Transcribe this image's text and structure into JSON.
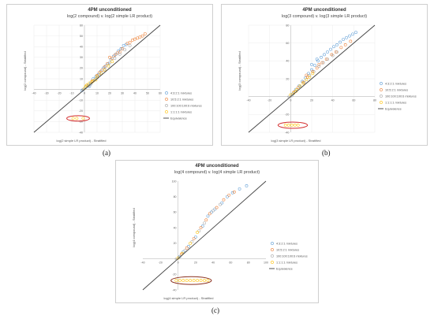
{
  "figure": {
    "panel_labels": [
      "(a)",
      "(b)",
      "(c)"
    ]
  },
  "chart_data": [
    {
      "type": "scatter",
      "title": "4PM unconditioned",
      "subtitle": "log(2 compound) v. log(2 simple LR product)",
      "xlabel": "log(2 simple LR product) - Stratified",
      "ylabel": "log(2 compound) - Stratified",
      "xlim": [
        -40,
        60
      ],
      "ylim": [
        -40,
        60
      ],
      "xticks": [
        "-40",
        "-30",
        "-20",
        "-10",
        "0",
        "10",
        "20",
        "30",
        "40",
        "50",
        "60"
      ],
      "yticks": [
        "-40",
        "-30",
        "-20",
        "-10",
        "0",
        "10",
        "20",
        "30",
        "40",
        "50",
        "60"
      ],
      "grid": true,
      "legend": "right",
      "series": [
        {
          "name": "4:3:2:1 mixtures",
          "color": "#5b9bd5",
          "points": [
            [
              1,
              2
            ],
            [
              3,
              4
            ],
            [
              5,
              6
            ],
            [
              7,
              10
            ],
            [
              9,
              12
            ],
            [
              11,
              14
            ],
            [
              13,
              17
            ],
            [
              15,
              20
            ],
            [
              17,
              22
            ],
            [
              19,
              24
            ],
            [
              21,
              28
            ],
            [
              23,
              31
            ],
            [
              25,
              33
            ],
            [
              27,
              36
            ],
            [
              29,
              38
            ],
            [
              31,
              41
            ],
            [
              33,
              42
            ],
            [
              -2,
              -1
            ],
            [
              4,
              3
            ]
          ]
        },
        {
          "name": "10:5:2:1 mixtures",
          "color": "#ed7d31",
          "points": [
            [
              2,
              4
            ],
            [
              6,
              8
            ],
            [
              10,
              13
            ],
            [
              14,
              18
            ],
            [
              18,
              24
            ],
            [
              22,
              29
            ],
            [
              26,
              34
            ],
            [
              30,
              38
            ],
            [
              34,
              43
            ],
            [
              38,
              46
            ],
            [
              42,
              48
            ],
            [
              46,
              50
            ],
            [
              48,
              52
            ],
            [
              20,
              30
            ],
            [
              24,
              32
            ],
            [
              28,
              35
            ],
            [
              36,
              44
            ],
            [
              40,
              47
            ],
            [
              44,
              49
            ],
            [
              12,
              16
            ],
            [
              16,
              21
            ]
          ]
        },
        {
          "name": "100:100:100:6 mixtures",
          "color": "#a5a5a5",
          "points": [
            [
              3,
              3
            ],
            [
              8,
              9
            ],
            [
              12,
              14
            ],
            [
              16,
              19
            ],
            [
              20,
              25
            ],
            [
              24,
              29
            ],
            [
              28,
              33
            ],
            [
              32,
              37
            ],
            [
              36,
              41
            ],
            [
              -1,
              0
            ],
            [
              5,
              5
            ],
            [
              10,
              11
            ]
          ]
        },
        {
          "name": "1:1:1:1 mixtures",
          "color": "#ffc000",
          "points": [
            [
              1,
              3
            ],
            [
              4,
              6
            ],
            [
              7,
              8
            ],
            [
              10,
              12
            ],
            [
              13,
              15
            ],
            [
              16,
              18
            ],
            [
              19,
              22
            ],
            [
              22,
              26
            ],
            [
              2,
              4
            ],
            [
              6,
              7
            ],
            [
              9,
              9
            ],
            [
              0,
              1
            ],
            [
              -9,
              -27
            ],
            [
              -6,
              -27
            ],
            [
              -1,
              -27
            ]
          ]
        },
        {
          "name": "Equivalence",
          "color": "#404040",
          "type": "line",
          "x": [
            -40,
            60
          ],
          "y": [
            -40,
            60
          ]
        }
      ],
      "highlight_ellipse": {
        "cx": -5,
        "cy": -27,
        "rx": 9,
        "ry": 2.5,
        "color": "#d32a2a"
      }
    },
    {
      "type": "scatter",
      "title": "4PM unconditioned",
      "subtitle": "log(3 compound) v. log(3 simple LR product)",
      "xlabel": "log(3 simple LR product) - Stratified",
      "ylabel": "log(3 compound) - Stratified",
      "xlim": [
        -40,
        80
      ],
      "ylim": [
        -40,
        80
      ],
      "xticks": [
        "-40",
        "-20",
        "0",
        "20",
        "40",
        "60",
        "80"
      ],
      "yticks": [
        "-40",
        "-20",
        "0",
        "20",
        "40",
        "60",
        "80"
      ],
      "grid": true,
      "legend": "right",
      "series": [
        {
          "name": "4:3:2:1 mixtures",
          "color": "#5b9bd5",
          "points": [
            [
              2,
              3
            ],
            [
              5,
              8
            ],
            [
              8,
              12
            ],
            [
              11,
              17
            ],
            [
              14,
              21
            ],
            [
              17,
              26
            ],
            [
              20,
              30
            ],
            [
              23,
              35
            ],
            [
              26,
              40
            ],
            [
              29,
              44
            ],
            [
              32,
              47
            ],
            [
              35,
              50
            ],
            [
              38,
              53
            ],
            [
              41,
              56
            ],
            [
              44,
              58
            ],
            [
              47,
              61
            ],
            [
              50,
              64
            ],
            [
              53,
              66
            ],
            [
              56,
              68
            ],
            [
              59,
              70
            ],
            [
              62,
              72
            ],
            [
              20,
              36
            ],
            [
              25,
              42
            ]
          ]
        },
        {
          "name": "10:5:2:1 mixtures",
          "color": "#ed7d31",
          "points": [
            [
              3,
              5
            ],
            [
              7,
              10
            ],
            [
              12,
              16
            ],
            [
              16,
              22
            ],
            [
              21,
              28
            ],
            [
              25,
              32
            ],
            [
              30,
              38
            ],
            [
              34,
              42
            ],
            [
              39,
              47
            ],
            [
              43,
              50
            ],
            [
              48,
              55
            ],
            [
              52,
              58
            ],
            [
              57,
              62
            ],
            [
              15,
              24
            ],
            [
              27,
              36
            ]
          ]
        },
        {
          "name": "100:100:100:6 mixtures",
          "color": "#a5a5a5",
          "points": [
            [
              1,
              1
            ],
            [
              4,
              6
            ],
            [
              9,
              11
            ],
            [
              13,
              16
            ],
            [
              18,
              24
            ],
            [
              22,
              28
            ],
            [
              27,
              34
            ],
            [
              31,
              38
            ],
            [
              35,
              42
            ],
            [
              40,
              46
            ],
            [
              44,
              50
            ]
          ]
        },
        {
          "name": "1:1:1:1 mixtures",
          "color": "#ffc000",
          "points": [
            [
              0,
              2
            ],
            [
              3,
              4
            ],
            [
              6,
              8
            ],
            [
              9,
              12
            ],
            [
              12,
              15
            ],
            [
              15,
              19
            ],
            [
              18,
              22
            ],
            [
              21,
              26
            ],
            [
              5,
              6
            ],
            [
              -5,
              -32
            ],
            [
              -2,
              -32
            ],
            [
              1,
              -32
            ],
            [
              4,
              -32
            ],
            [
              7,
              -32
            ]
          ]
        },
        {
          "name": "Equivalence",
          "color": "#404040",
          "type": "line",
          "x": [
            -40,
            80
          ],
          "y": [
            -40,
            80
          ]
        }
      ],
      "highlight_ellipse": {
        "cx": 2,
        "cy": -32,
        "rx": 14,
        "ry": 3.5,
        "color": "#d32a2a"
      }
    },
    {
      "type": "scatter",
      "title": "4PM unconditioned",
      "subtitle": "log(4 compound) v. log(4 simple LR product)",
      "xlabel": "log(4 simple LR product) - Stratified",
      "ylabel": "log(4 compound) - Stratified",
      "xlim": [
        -40,
        100
      ],
      "ylim": [
        -40,
        100
      ],
      "xticks": [
        "-40",
        "-20",
        "0",
        "20",
        "40",
        "60",
        "80",
        "100"
      ],
      "yticks": [
        "-40",
        "-20",
        "0",
        "20",
        "40",
        "60",
        "80",
        "100"
      ],
      "grid": false,
      "legend": "right",
      "series": [
        {
          "name": "4:3:2:1 mixtures",
          "color": "#5b9bd5",
          "points": [
            [
              2,
              3
            ],
            [
              6,
              9
            ],
            [
              12,
              16
            ],
            [
              20,
              28
            ],
            [
              28,
              42
            ],
            [
              34,
              55
            ],
            [
              38,
              60
            ],
            [
              42,
              64
            ],
            [
              50,
              72
            ],
            [
              56,
              80
            ],
            [
              62,
              85
            ],
            [
              70,
              90
            ],
            [
              78,
              94
            ]
          ]
        },
        {
          "name": "10:5:2:1 mixtures",
          "color": "#ed7d31",
          "points": [
            [
              4,
              6
            ],
            [
              10,
              14
            ],
            [
              18,
              26
            ],
            [
              26,
              40
            ],
            [
              32,
              50
            ],
            [
              36,
              58
            ],
            [
              44,
              66
            ],
            [
              52,
              76
            ],
            [
              58,
              82
            ],
            [
              64,
              86
            ]
          ]
        },
        {
          "name": "100:100:100:6 mixtures",
          "color": "#a5a5a5",
          "points": [
            [
              1,
              2
            ],
            [
              8,
              11
            ],
            [
              16,
              22
            ],
            [
              24,
              36
            ],
            [
              30,
              46
            ],
            [
              40,
              62
            ],
            [
              48,
              70
            ]
          ]
        },
        {
          "name": "1:1:1:1 mixtures",
          "color": "#ffc000",
          "points": [
            [
              0,
              1
            ],
            [
              5,
              7
            ],
            [
              14,
              20
            ],
            [
              22,
              34
            ],
            [
              -2,
              -28
            ],
            [
              2,
              -28
            ],
            [
              6,
              -28
            ],
            [
              10,
              -28
            ],
            [
              14,
              -28
            ],
            [
              18,
              -28
            ],
            [
              22,
              -28
            ],
            [
              26,
              -28
            ],
            [
              30,
              -28
            ],
            [
              34,
              -28
            ]
          ]
        },
        {
          "name": "Equivalence",
          "color": "#404040",
          "type": "line",
          "x": [
            -40,
            100
          ],
          "y": [
            -40,
            100
          ]
        }
      ],
      "highlight_ellipse": {
        "cx": 15,
        "cy": -28,
        "rx": 23,
        "ry": 5,
        "color": "#8b2e1c"
      }
    }
  ]
}
